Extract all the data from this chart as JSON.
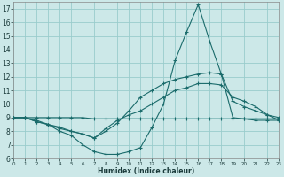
{
  "xlabel": "Humidex (Indice chaleur)",
  "xlim": [
    0,
    23
  ],
  "ylim": [
    6,
    17.5
  ],
  "xticks": [
    0,
    1,
    2,
    3,
    4,
    5,
    6,
    7,
    8,
    9,
    10,
    11,
    12,
    13,
    14,
    15,
    16,
    17,
    18,
    19,
    20,
    21,
    22,
    23
  ],
  "yticks": [
    6,
    7,
    8,
    9,
    10,
    11,
    12,
    13,
    14,
    15,
    16,
    17
  ],
  "bg_color": "#cce8e8",
  "grid_color": "#99cccc",
  "line_color": "#1a6b6b",
  "series": [
    [
      9.0,
      9.0,
      8.7,
      8.5,
      8.0,
      7.7,
      7.0,
      6.5,
      6.3,
      6.3,
      6.5,
      6.8,
      8.3,
      10.0,
      13.2,
      15.3,
      17.3,
      14.6,
      12.2,
      10.2,
      9.8,
      9.5,
      9.2,
      9.0
    ],
    [
      9.0,
      9.0,
      8.7,
      8.5,
      8.2,
      8.0,
      7.8,
      7.5,
      8.0,
      8.6,
      9.5,
      10.5,
      11.0,
      11.5,
      11.8,
      12.0,
      12.2,
      12.3,
      12.2,
      9.0,
      8.9,
      8.8,
      8.8,
      8.8
    ],
    [
      9.0,
      9.0,
      8.8,
      8.5,
      8.3,
      8.0,
      7.8,
      7.5,
      8.2,
      8.8,
      9.2,
      9.5,
      10.0,
      10.5,
      11.0,
      11.2,
      11.5,
      11.5,
      11.4,
      10.5,
      10.2,
      9.8,
      9.2,
      8.8
    ],
    [
      9.0,
      9.0,
      9.0,
      9.0,
      9.0,
      9.0,
      9.0,
      8.9,
      8.9,
      8.9,
      8.9,
      8.9,
      8.9,
      8.9,
      8.9,
      8.9,
      8.9,
      8.9,
      8.9,
      8.9,
      8.9,
      8.9,
      8.9,
      8.9
    ]
  ]
}
